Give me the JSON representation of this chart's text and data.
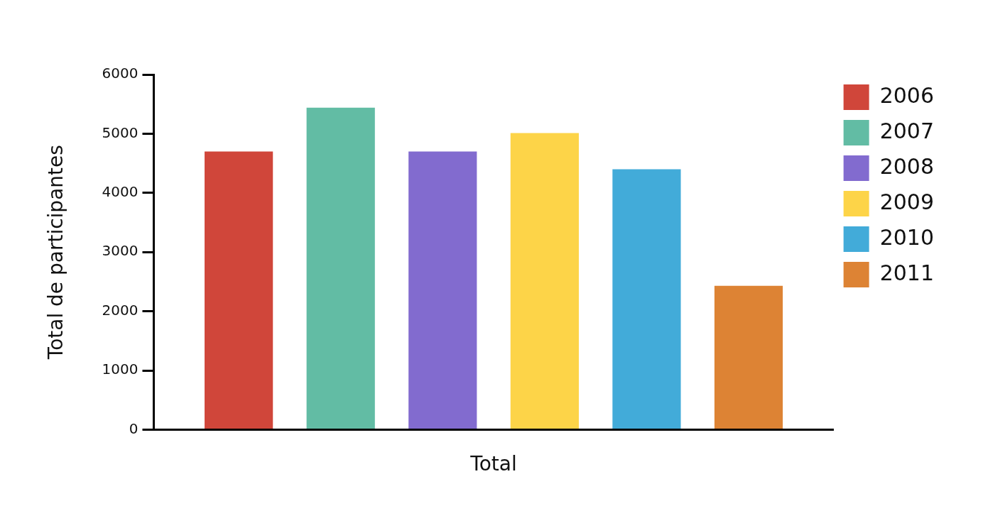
{
  "chart_data": {
    "type": "bar",
    "ylabel": "Total de participantes",
    "categories": [
      "Total"
    ],
    "series": [
      {
        "name": "2006",
        "color": "#d0463a",
        "values": [
          4700
        ]
      },
      {
        "name": "2007",
        "color": "#62bca4",
        "values": [
          5440
        ]
      },
      {
        "name": "2008",
        "color": "#826bcf",
        "values": [
          4700
        ]
      },
      {
        "name": "2009",
        "color": "#fdd448",
        "values": [
          5010
        ]
      },
      {
        "name": "2010",
        "color": "#42abd9",
        "values": [
          4400
        ]
      },
      {
        "name": "2011",
        "color": "#dd8334",
        "values": [
          2430
        ]
      }
    ],
    "ylim": [
      0,
      6000
    ],
    "yticks": [
      0,
      1000,
      2000,
      3000,
      4000,
      5000,
      6000
    ],
    "grid": false,
    "legend": "top right"
  }
}
